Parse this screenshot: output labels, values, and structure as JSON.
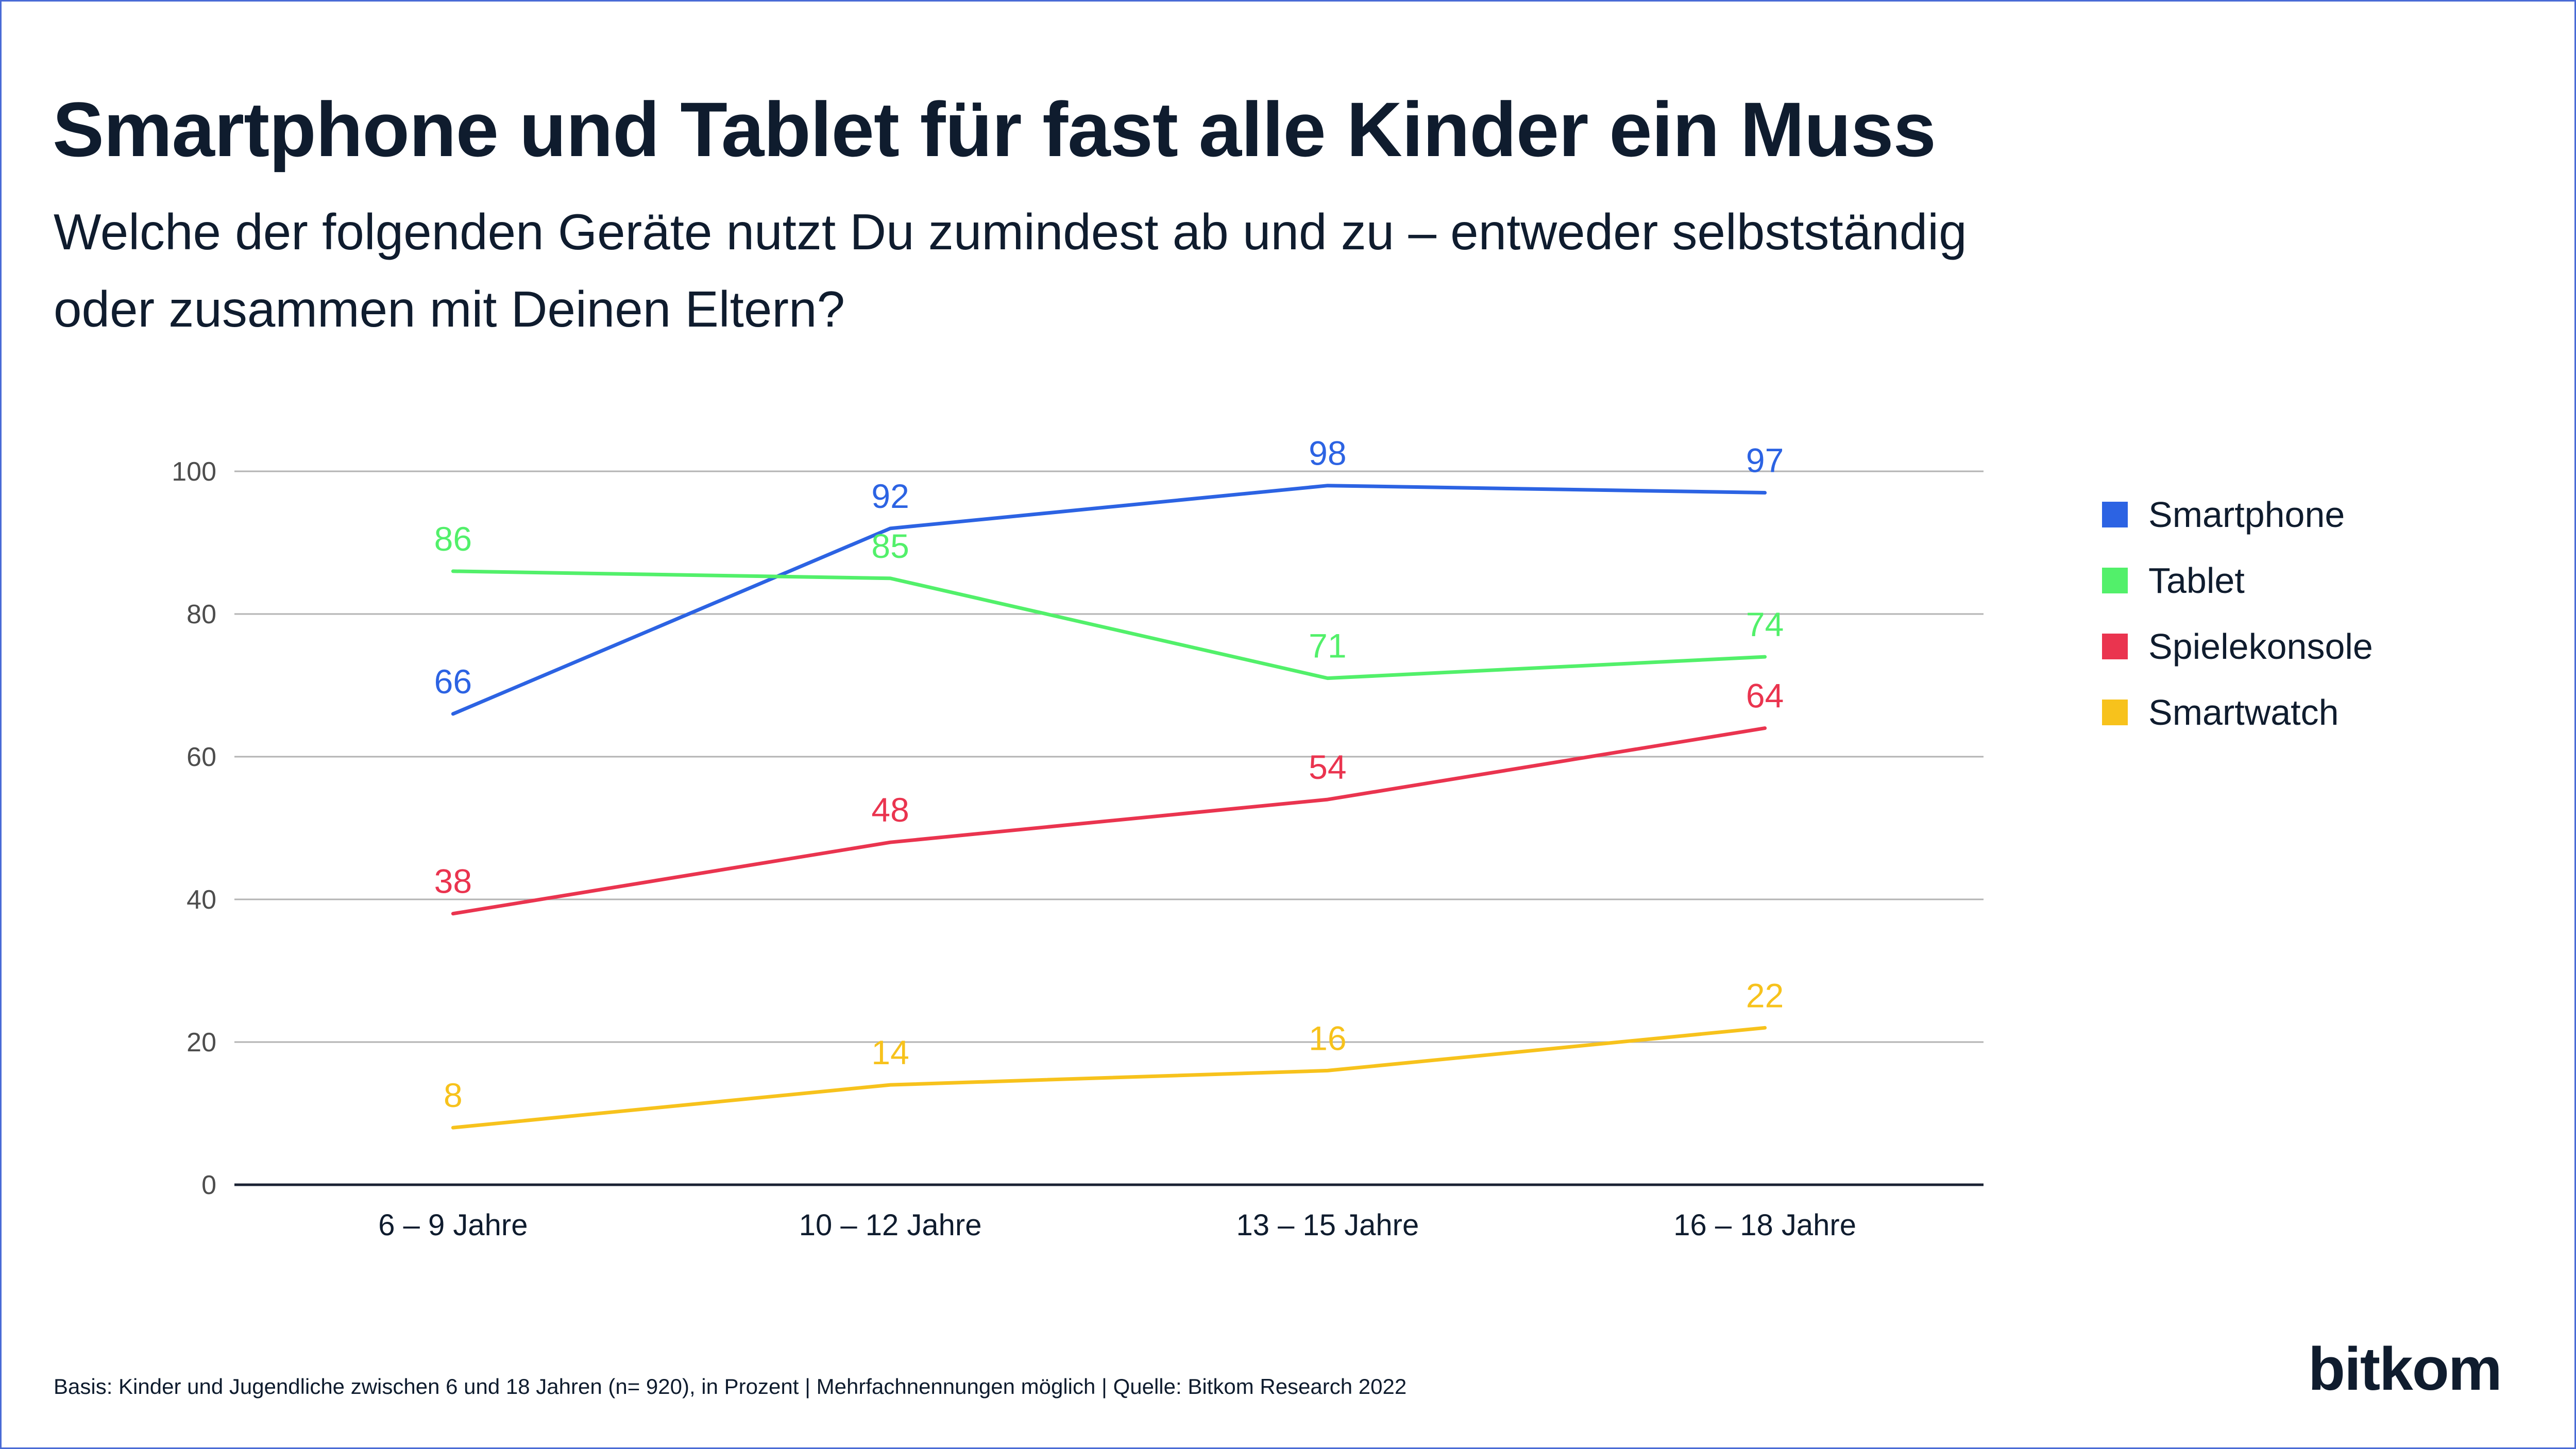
{
  "title": "Smartphone und Tablet für fast alle Kinder ein Muss",
  "subtitle": "Welche der folgenden Geräte nutzt Du zumindest ab und zu – entweder selbstständig oder zusammen mit Deinen Eltern?",
  "footnote": "Basis: Kinder und Jugendliche zwischen 6 und 18 Jahren (n= 920), in Prozent | Mehrfachnennungen möglich | Quelle: Bitkom Research 2022",
  "logo_text": "bitkom",
  "chart_data": {
    "type": "line",
    "categories": [
      "6 – 9 Jahre",
      "10 – 12 Jahre",
      "13 – 15 Jahre",
      "16 – 18 Jahre"
    ],
    "ylim": [
      0,
      100
    ],
    "yticks": [
      0,
      20,
      40,
      60,
      80,
      100
    ],
    "grid": true,
    "legend_position": "right",
    "series": [
      {
        "name": "Smartphone",
        "color": "#2c63e3",
        "values": [
          66,
          92,
          98,
          97
        ]
      },
      {
        "name": "Tablet",
        "color": "#52f06a",
        "values": [
          86,
          85,
          71,
          74
        ]
      },
      {
        "name": "Spielekonsole",
        "color": "#ea344f",
        "values": [
          38,
          48,
          54,
          64
        ]
      },
      {
        "name": "Smartwatch",
        "color": "#f7c21c",
        "values": [
          8,
          14,
          16,
          22
        ]
      }
    ]
  }
}
